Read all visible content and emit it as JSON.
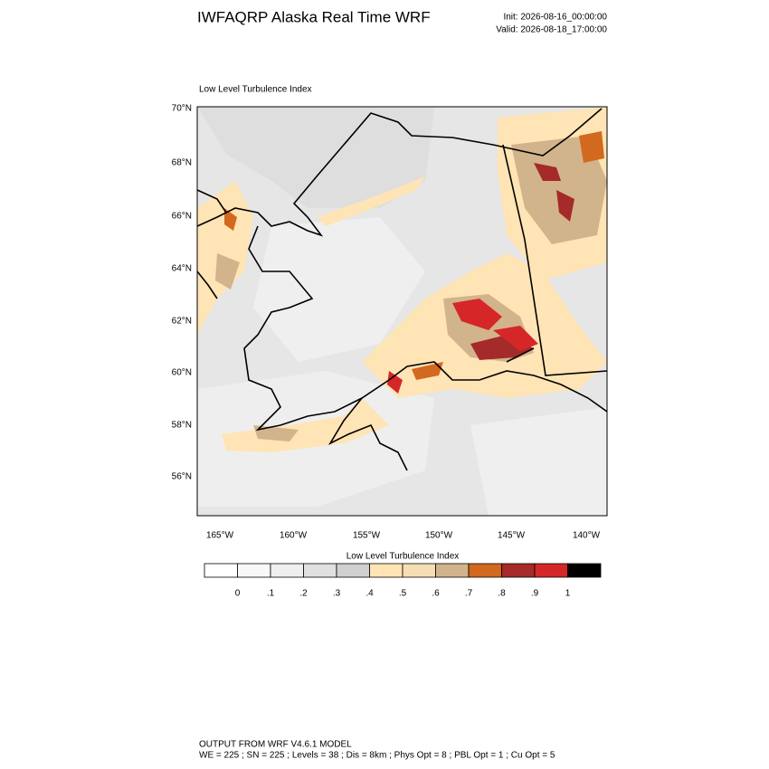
{
  "header": {
    "title": "IWFAQRP Alaska Real Time WRF",
    "init": "Init: 2026-08-16_00:00:00",
    "valid": "Valid: 2026-08-18_17:00:00"
  },
  "map": {
    "label": "Low Level Turbulence Index",
    "lat_labels": [
      "70°N",
      "68°N",
      "66°N",
      "64°N",
      "62°N",
      "60°N",
      "58°N",
      "56°N"
    ],
    "lon_labels": [
      "165°W",
      "160°W",
      "155°W",
      "150°W",
      "145°W",
      "140°W"
    ]
  },
  "colorbar": {
    "title": "Low Level Turbulence Index",
    "labels": [
      "0",
      ".1",
      ".2",
      ".3",
      ".4",
      ".5",
      ".6",
      ".7",
      ".8",
      ".9",
      "1"
    ],
    "colors": [
      "#ffffff",
      "#f8f8f8",
      "#efefef",
      "#e0e0e0",
      "#d0d0d0",
      "#ffe4b5",
      "#f5deb3",
      "#d2b48c",
      "#d2691e",
      "#a52a2a",
      "#d62728",
      "#000000"
    ]
  },
  "footer": {
    "line1": "OUTPUT FROM WRF V4.6.1 MODEL",
    "line2": "WE = 225 ; SN = 225 ; Levels = 38 ; Dis = 8km ; Phys Opt = 8 ; PBL Opt = 1 ; Cu Opt = 5"
  }
}
